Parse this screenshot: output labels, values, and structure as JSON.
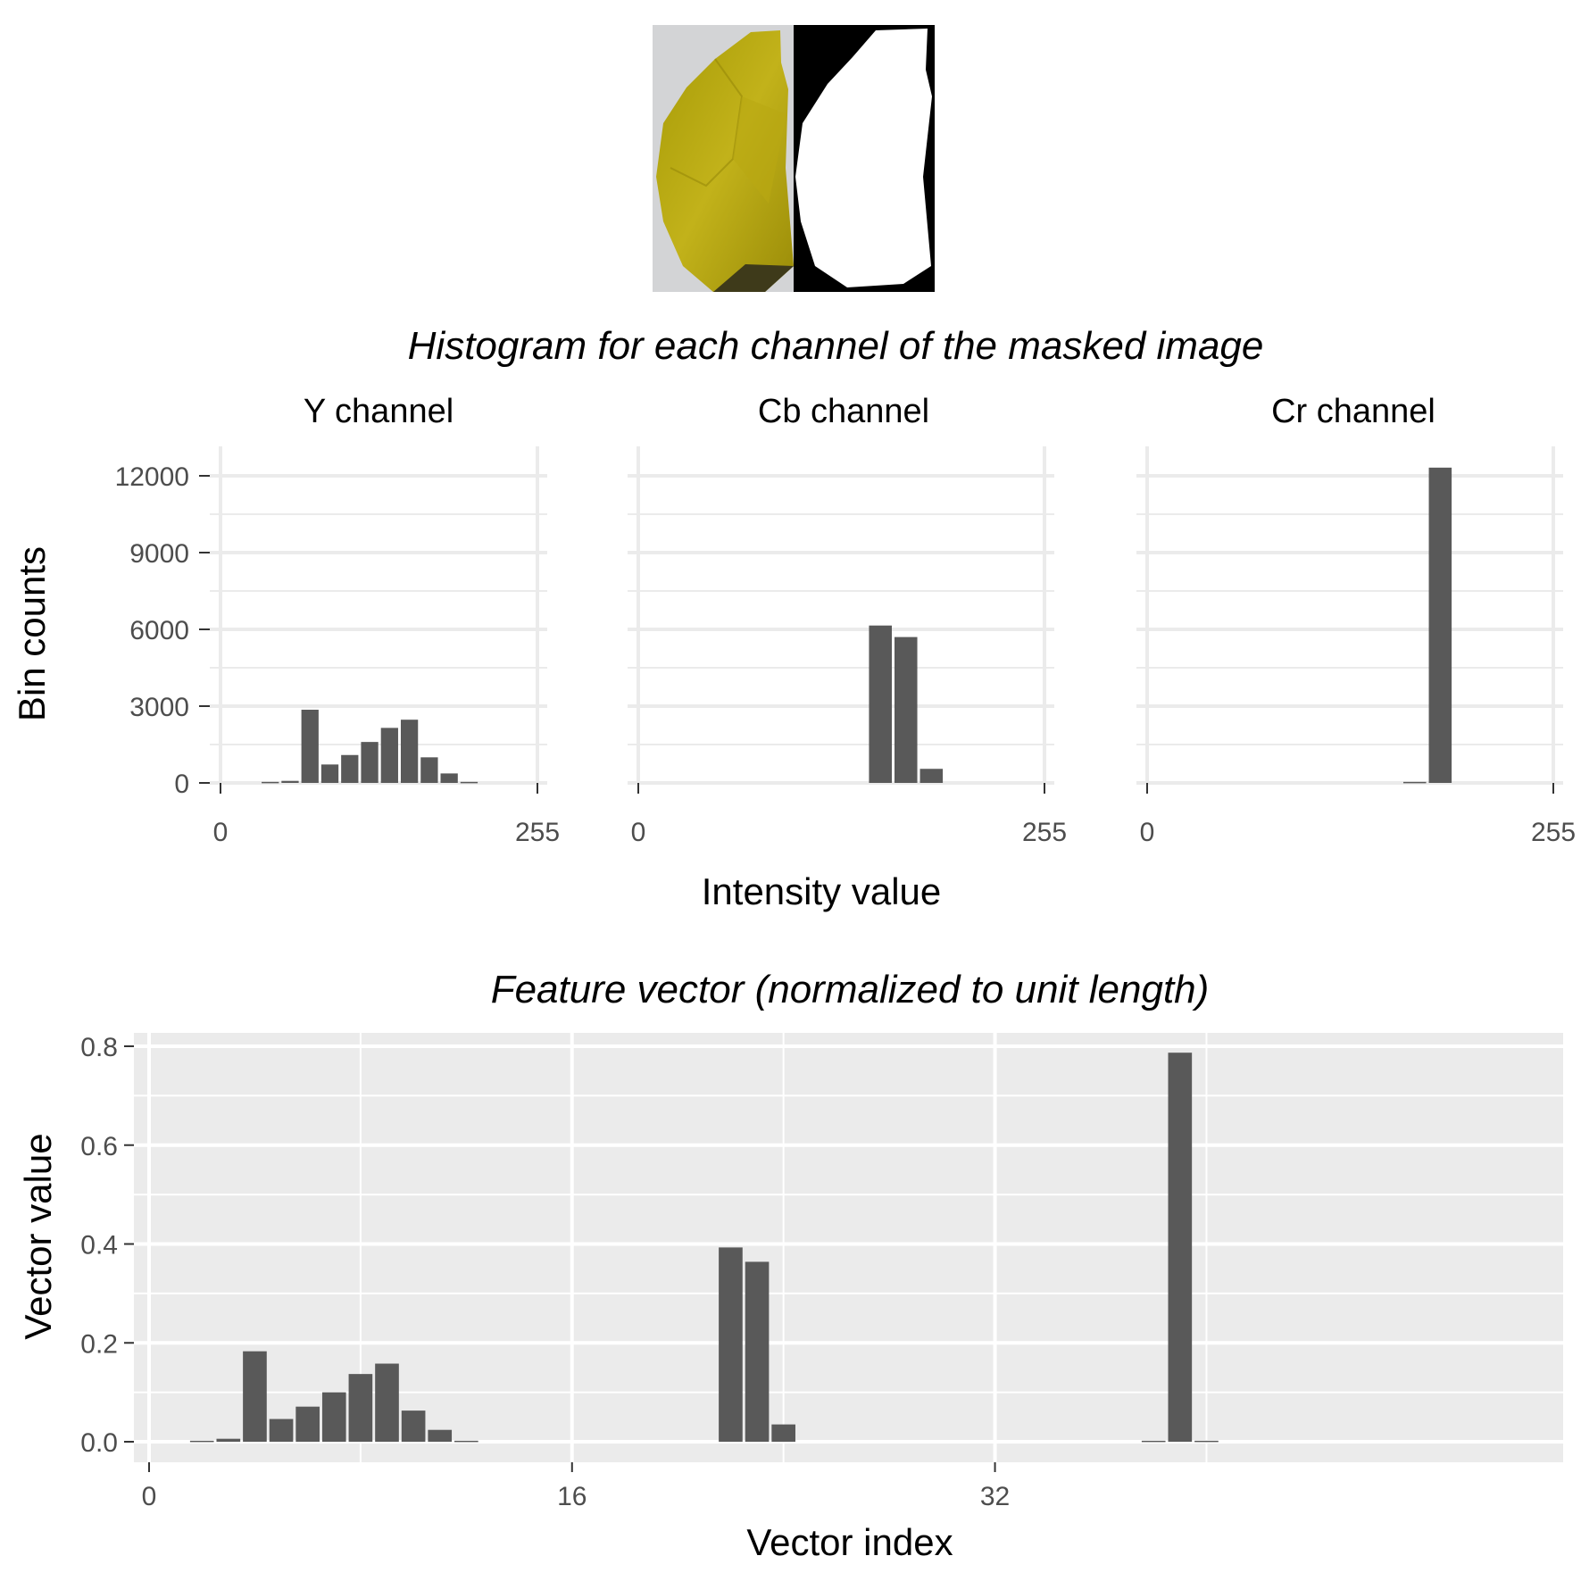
{
  "images": {
    "photo_name": "banana-photo",
    "mask_name": "binary-mask"
  },
  "histograms": {
    "title": "Histogram for each channel of the masked image",
    "ylabel": "Bin counts",
    "xlabel": "Intensity value",
    "panels": [
      {
        "title": "Y channel",
        "name": "y"
      },
      {
        "title": "Cb channel",
        "name": "cb"
      },
      {
        "title": "Cr channel",
        "name": "cr"
      }
    ]
  },
  "feature_vector": {
    "title": "Feature vector (normalized to unit length)",
    "xlabel": "Vector index",
    "ylabel": "Vector value"
  },
  "chart_data": [
    {
      "type": "bar",
      "title": "Y channel",
      "xlabel": "Intensity value",
      "ylabel": "Bin counts",
      "bin_width": 16,
      "x": [
        8,
        24,
        40,
        56,
        72,
        88,
        104,
        120,
        136,
        152,
        168,
        184,
        200,
        216,
        232,
        248
      ],
      "values": [
        0,
        0,
        40,
        80,
        2860,
        720,
        1090,
        1600,
        2150,
        2470,
        1000,
        370,
        40,
        0,
        0,
        0
      ],
      "xlim": [
        0,
        255
      ],
      "ylim": [
        0,
        12000
      ],
      "xticks": [
        0,
        255
      ],
      "yticks": [
        0,
        3000,
        6000,
        9000,
        12000
      ]
    },
    {
      "type": "bar",
      "title": "Cb channel",
      "xlabel": "Intensity value",
      "ylabel": "Bin counts",
      "bin_width": 16,
      "x": [
        8,
        24,
        40,
        56,
        72,
        88,
        104,
        120,
        136,
        152,
        168,
        184,
        200,
        216,
        232,
        248
      ],
      "values": [
        0,
        0,
        0,
        0,
        0,
        0,
        0,
        0,
        0,
        6150,
        5700,
        550,
        0,
        0,
        0,
        0
      ],
      "xlim": [
        0,
        255
      ],
      "ylim": [
        0,
        12000
      ],
      "xticks": [
        0,
        255
      ],
      "yticks": [
        0,
        3000,
        6000,
        9000,
        12000
      ]
    },
    {
      "type": "bar",
      "title": "Cr channel",
      "xlabel": "Intensity value",
      "ylabel": "Bin counts",
      "bin_width": 16,
      "x": [
        8,
        24,
        40,
        56,
        72,
        88,
        104,
        120,
        136,
        152,
        168,
        184,
        200,
        216,
        232,
        248
      ],
      "values": [
        0,
        0,
        0,
        0,
        0,
        0,
        0,
        0,
        0,
        0,
        40,
        12320,
        0,
        0,
        0,
        0
      ],
      "xlim": [
        0,
        255
      ],
      "ylim": [
        0,
        12000
      ],
      "xticks": [
        0,
        255
      ],
      "yticks": [
        0,
        3000,
        6000,
        9000,
        12000
      ]
    },
    {
      "type": "bar",
      "title": "Feature vector (normalized to unit length)",
      "xlabel": "Vector index",
      "ylabel": "Vector value",
      "x": [
        1,
        2,
        3,
        4,
        5,
        6,
        7,
        8,
        9,
        10,
        11,
        12,
        13,
        14,
        15,
        16,
        17,
        18,
        19,
        20,
        21,
        22,
        23,
        24,
        25,
        26,
        27,
        28,
        29,
        30,
        31,
        32,
        33,
        34,
        35,
        36,
        37,
        38,
        39,
        40,
        41,
        42,
        43,
        44,
        45,
        46,
        47,
        48
      ],
      "values": [
        0,
        0.002,
        0.006,
        0.183,
        0.046,
        0.071,
        0.1,
        0.137,
        0.158,
        0.063,
        0.024,
        0.002,
        0,
        0,
        0,
        0,
        0,
        0,
        0,
        0,
        0,
        0.393,
        0.364,
        0.035,
        0,
        0,
        0,
        0,
        0,
        0,
        0,
        0,
        0,
        0,
        0,
        0,
        0,
        0.002,
        0.787,
        0.002,
        0,
        0,
        0,
        0,
        0,
        0,
        0,
        0
      ],
      "xlim": [
        0,
        47
      ],
      "ylim": [
        0,
        0.8
      ],
      "xticks": [
        0,
        16,
        32
      ],
      "yticks": [
        0.0,
        0.2,
        0.4,
        0.6,
        0.8
      ],
      "ytick_labels": [
        "0.0",
        "0.2",
        "0.4",
        "0.6",
        "0.8"
      ],
      "grid": true,
      "background": "#ebebeb"
    }
  ],
  "colors": {
    "bar": "#595959",
    "grid_light": "#ebebeb",
    "panel_bg": "#ebebeb",
    "text_dark": "#000000",
    "tick_text": "#4d4d4d"
  }
}
